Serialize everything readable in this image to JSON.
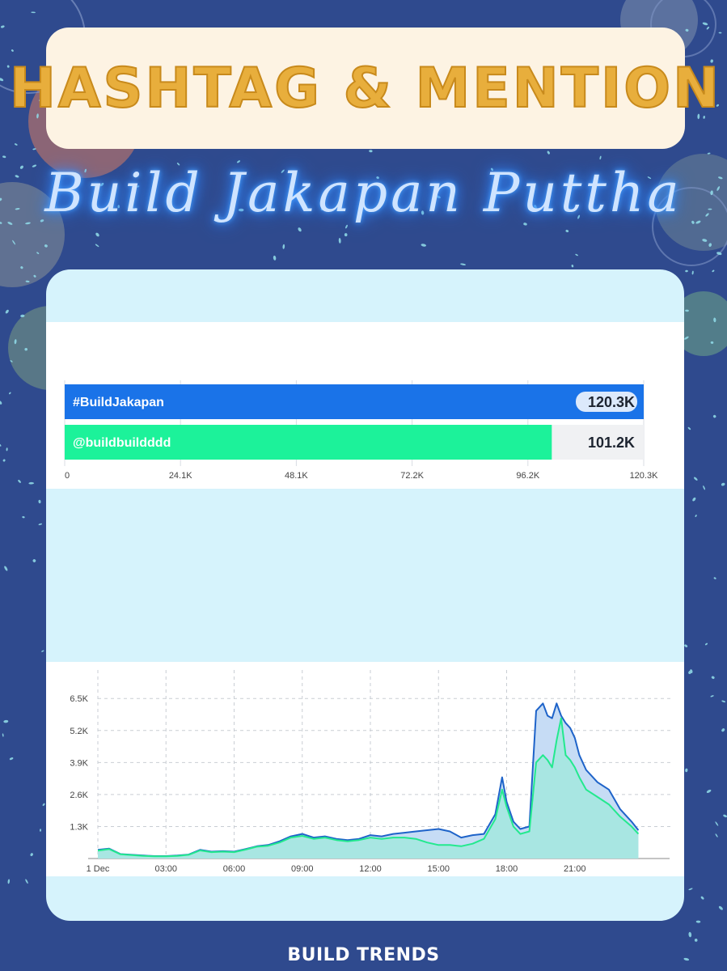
{
  "header": {
    "title": "HASHTAG & MENTION",
    "subtitle": "Build Jakapan Puttha"
  },
  "footer": {
    "label": "BUILD TRENDS"
  },
  "colors": {
    "background": "#2f4a8e",
    "title": "#e8ae3c",
    "hashtag_bar": "#1a73e8",
    "mention_bar": "#1cf29a",
    "line_hashtag": "#1e63c9",
    "line_mention": "#23e98e",
    "panel": "#d6f3fc"
  },
  "chart_data": [
    {
      "type": "bar",
      "orientation": "horizontal",
      "categories": [
        "#BuildJakapan",
        "@buildbuildddd"
      ],
      "values": [
        120300,
        101200
      ],
      "value_labels": [
        "120.3K",
        "101.2K"
      ],
      "xticks": [
        "0",
        "24.1K",
        "48.1K",
        "72.2K",
        "96.2K",
        "120.3K"
      ],
      "xlim": [
        0,
        120300
      ],
      "grid": true
    },
    {
      "type": "area",
      "x_labels": [
        "1 Dec",
        "03:00",
        "06:00",
        "09:00",
        "12:00",
        "15:00",
        "18:00",
        "21:00"
      ],
      "yticks": [
        "1.3K",
        "2.6K",
        "3.9K",
        "5.2K",
        "6.5K"
      ],
      "ylim": [
        0,
        7000
      ],
      "grid": true,
      "x_hours": [
        0,
        0.5,
        1,
        1.5,
        2,
        2.5,
        3,
        3.5,
        4,
        4.5,
        5,
        5.5,
        6,
        6.5,
        7,
        7.5,
        8,
        8.5,
        9,
        9.5,
        10,
        10.5,
        11,
        11.5,
        12,
        12.5,
        13,
        13.5,
        14,
        14.5,
        15,
        15.5,
        16,
        16.5,
        17,
        17.5,
        17.8,
        18,
        18.3,
        18.6,
        19,
        19.3,
        19.6,
        19.8,
        20,
        20.2,
        20.4,
        20.6,
        20.8,
        21,
        21.2,
        21.5,
        22,
        22.5,
        23,
        23.5,
        23.8
      ],
      "series": [
        {
          "values": [
            350,
            400,
            180,
            150,
            120,
            100,
            100,
            120,
            160,
            350,
            280,
            300,
            280,
            380,
            500,
            550,
            700,
            900,
            1000,
            850,
            900,
            800,
            750,
            800,
            950,
            900,
            1000,
            1050,
            1100,
            1150,
            1200,
            1100,
            850,
            950,
            1000,
            1800,
            3300,
            2300,
            1500,
            1200,
            1300,
            6000,
            6300,
            5800,
            5700,
            6300,
            5800,
            5500,
            5300,
            4900,
            4200,
            3600,
            3100,
            2800,
            2000,
            1500,
            1150
          ]
        },
        {
          "values": [
            320,
            380,
            170,
            140,
            110,
            90,
            90,
            110,
            150,
            330,
            260,
            280,
            260,
            360,
            480,
            520,
            650,
            850,
            920,
            800,
            850,
            750,
            700,
            750,
            850,
            800,
            850,
            850,
            800,
            650,
            550,
            550,
            500,
            600,
            800,
            1600,
            2800,
            2100,
            1300,
            1000,
            1100,
            3900,
            4200,
            4000,
            3700,
            4800,
            5700,
            4200,
            4000,
            3700,
            3300,
            2800,
            2500,
            2200,
            1700,
            1300,
            1000
          ]
        }
      ]
    }
  ]
}
